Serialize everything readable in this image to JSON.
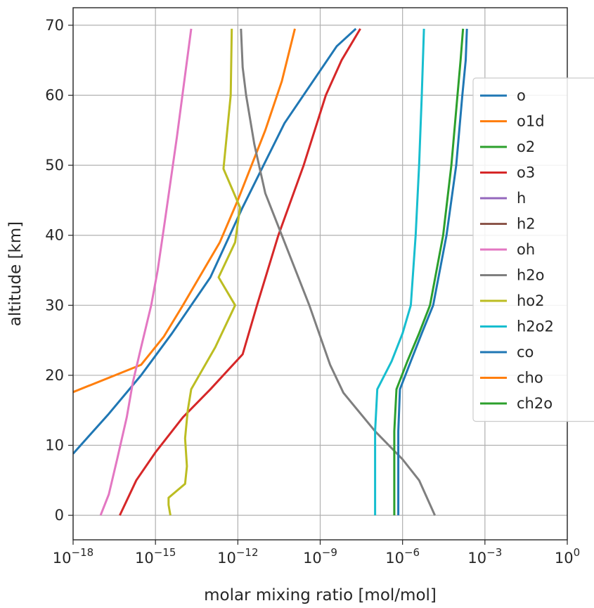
{
  "chart_data": {
    "type": "line",
    "title": "",
    "xlabel": "molar mixing ratio [mol/mol]",
    "ylabel": "altitude [km]",
    "xscale": "log",
    "xlim": [
      1e-18,
      1
    ],
    "ylim": [
      -3.5,
      72.5
    ],
    "xticks": [
      {
        "exp": "-18",
        "value": 1e-18
      },
      {
        "exp": "-15",
        "value": 1e-15
      },
      {
        "exp": "-12",
        "value": 1e-12
      },
      {
        "exp": "-9",
        "value": 1e-09
      },
      {
        "exp": "-6",
        "value": 1e-06
      },
      {
        "exp": "-3",
        "value": 0.001
      },
      {
        "exp": "0",
        "value": 1
      }
    ],
    "xtick_base": "10",
    "yticks": [
      {
        "label": "0",
        "value": 0
      },
      {
        "label": "10",
        "value": 10
      },
      {
        "label": "20",
        "value": 20
      },
      {
        "label": "30",
        "value": 30
      },
      {
        "label": "40",
        "value": 40
      },
      {
        "label": "50",
        "value": 50
      },
      {
        "label": "60",
        "value": 60
      },
      {
        "label": "70",
        "value": 70
      }
    ],
    "grid": true,
    "legend_position": "right",
    "series": [
      {
        "name": "o",
        "color": "#1f77b4",
        "points": [
          [
            1e-18,
            8.8
          ],
          [
            2e-17,
            14.5
          ],
          [
            3e-16,
            20
          ],
          [
            4e-15,
            26
          ],
          [
            1e-13,
            34
          ],
          [
            1.5e-12,
            44
          ],
          [
            5e-11,
            56
          ],
          [
            4e-09,
            67
          ],
          [
            2e-08,
            69.5
          ]
        ]
      },
      {
        "name": "o1d",
        "color": "#ff7f0e",
        "points": [
          [
            1e-18,
            17.6
          ],
          [
            3e-16,
            21.5
          ],
          [
            2e-15,
            25.5
          ],
          [
            1e-14,
            30
          ],
          [
            2.2e-13,
            39
          ],
          [
            1e-12,
            45
          ],
          [
            1e-11,
            55
          ],
          [
            4e-11,
            62
          ],
          [
            1.2e-10,
            69.5
          ]
        ]
      },
      {
        "name": "o3",
        "color": "#d62728",
        "points": [
          [
            5e-17,
            0
          ],
          [
            2e-16,
            5
          ],
          [
            1e-15,
            9
          ],
          [
            1e-14,
            14
          ],
          [
            1e-13,
            18
          ],
          [
            1.5e-12,
            23
          ],
          [
            5e-12,
            30
          ],
          [
            3e-11,
            40
          ],
          [
            2.5e-10,
            50
          ],
          [
            1.6e-09,
            60
          ],
          [
            6e-09,
            65
          ],
          [
            2.9e-08,
            69.5
          ]
        ]
      },
      {
        "name": "h2o",
        "color": "#7f7f7f",
        "points": [
          [
            1.5e-05,
            0
          ],
          [
            4e-06,
            5
          ],
          [
            1e-06,
            8
          ],
          [
            1e-07,
            12
          ],
          [
            7e-09,
            17.5
          ],
          [
            2.3e-09,
            21.5
          ],
          [
            4e-10,
            30
          ],
          [
            4e-11,
            40
          ],
          [
            1e-11,
            46
          ],
          [
            4e-12,
            53
          ],
          [
            2e-12,
            60
          ],
          [
            1.5e-12,
            64
          ],
          [
            1.3e-12,
            69.5
          ]
        ]
      },
      {
        "name": "oh",
        "color": "#e377c2",
        "points": [
          [
            1e-17,
            0
          ],
          [
            2e-17,
            3
          ],
          [
            4e-17,
            8
          ],
          [
            9e-17,
            14
          ],
          [
            1.5e-16,
            19
          ],
          [
            3e-16,
            24
          ],
          [
            7e-16,
            30
          ],
          [
            1.2e-15,
            35
          ],
          [
            2.2e-15,
            42
          ],
          [
            6e-15,
            54
          ],
          [
            2e-14,
            69.5
          ]
        ]
      },
      {
        "name": "ho2",
        "color": "#bcbd22",
        "points": [
          [
            3.5e-15,
            0
          ],
          [
            3e-15,
            1.5
          ],
          [
            3e-15,
            2.5
          ],
          [
            1.2e-14,
            4.5
          ],
          [
            1.4e-14,
            7
          ],
          [
            1.2e-14,
            11
          ],
          [
            1.5e-14,
            15
          ],
          [
            2e-14,
            18
          ],
          [
            1.5e-13,
            24
          ],
          [
            8e-13,
            30
          ],
          [
            2e-13,
            34
          ],
          [
            8e-13,
            39
          ],
          [
            1.2e-12,
            44
          ],
          [
            3e-13,
            49.5
          ],
          [
            5.5e-13,
            60
          ],
          [
            6e-13,
            69.5
          ]
        ]
      },
      {
        "name": "h2o2",
        "color": "#17becf",
        "points": [
          [
            1e-07,
            0
          ],
          [
            1e-07,
            12
          ],
          [
            1.2e-07,
            18
          ],
          [
            4e-07,
            22
          ],
          [
            1e-06,
            26
          ],
          [
            2e-06,
            30
          ],
          [
            3e-06,
            40
          ],
          [
            4e-06,
            50
          ],
          [
            5e-06,
            60
          ],
          [
            6e-06,
            69.5
          ]
        ]
      },
      {
        "name": "ch2o",
        "color": "#2ca02c",
        "points": [
          [
            5e-07,
            0
          ],
          [
            5e-07,
            12
          ],
          [
            6e-07,
            18
          ],
          [
            1.5e-06,
            22
          ],
          [
            4e-06,
            26
          ],
          [
            1e-05,
            30
          ],
          [
            3e-05,
            40
          ],
          [
            6e-05,
            50
          ],
          [
            0.0001,
            60
          ],
          [
            0.00013,
            65
          ],
          [
            0.00016,
            69.5
          ]
        ]
      },
      {
        "name": "co",
        "color": "#1f77b4",
        "points": [
          [
            7e-07,
            0
          ],
          [
            7e-07,
            12
          ],
          [
            8e-07,
            18
          ],
          [
            2e-06,
            22
          ],
          [
            5e-06,
            26
          ],
          [
            1.3e-05,
            30
          ],
          [
            4e-05,
            40
          ],
          [
            9e-05,
            50
          ],
          [
            0.00015,
            60
          ],
          [
            0.0002,
            65
          ],
          [
            0.00022,
            69.5
          ]
        ]
      }
    ],
    "legend": [
      {
        "name": "o",
        "color": "#1f77b4"
      },
      {
        "name": "o1d",
        "color": "#ff7f0e"
      },
      {
        "name": "o2",
        "color": "#2ca02c"
      },
      {
        "name": "o3",
        "color": "#d62728"
      },
      {
        "name": "h",
        "color": "#9467bd"
      },
      {
        "name": "h2",
        "color": "#8c564b"
      },
      {
        "name": "oh",
        "color": "#e377c2"
      },
      {
        "name": "h2o",
        "color": "#7f7f7f"
      },
      {
        "name": "ho2",
        "color": "#bcbd22"
      },
      {
        "name": "h2o2",
        "color": "#17becf"
      },
      {
        "name": "co",
        "color": "#1f77b4"
      },
      {
        "name": "cho",
        "color": "#ff7f0e"
      },
      {
        "name": "ch2o",
        "color": "#2ca02c"
      }
    ]
  }
}
